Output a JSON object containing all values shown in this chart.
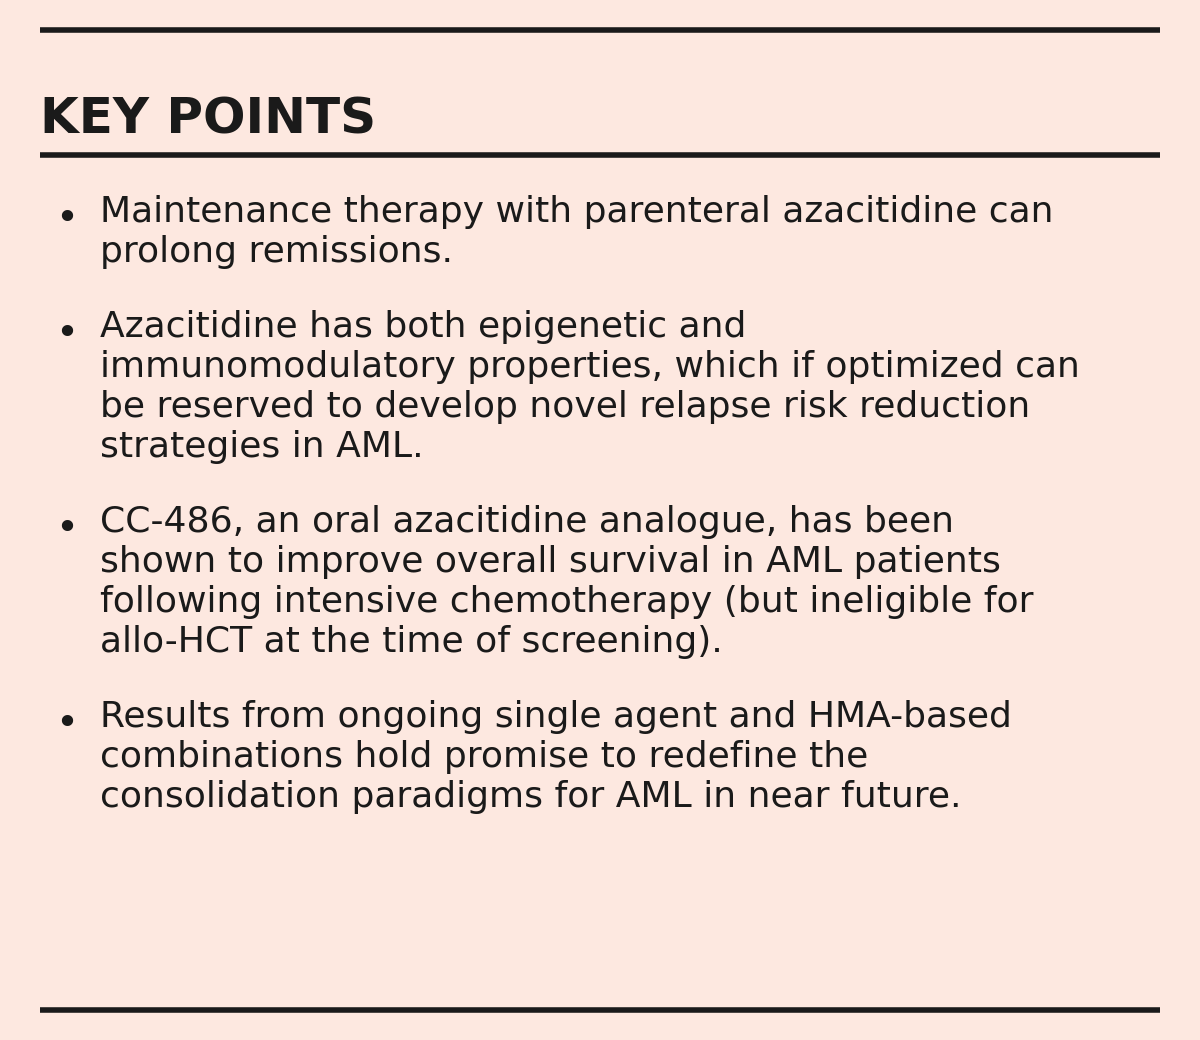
{
  "background_color": "#fde8e0",
  "title": "KEY POINTS",
  "title_fontsize": 36,
  "title_color": "#1a1a1a",
  "text_color": "#1a1a1a",
  "line_color": "#1a1a1a",
  "bullet_points": [
    "Maintenance therapy with parenteral azacitidine can\nprolong remissions.",
    "Azacitidine has both epigenetic and\nimmunomodulatory properties, which if optimized can\nbe reserved to develop novel relapse risk reduction\nstrategies in AML.",
    "CC-486, an oral azacitidine analogue, has been\nshown to improve overall survival in AML patients\nfollowing intensive chemotherapy (but ineligible for\nallo-HCT at the time of screening).",
    "Results from ongoing single agent and HMA-based\ncombinations hold promise to redefine the\nconsolidation paradigms for AML in near future."
  ],
  "body_fontsize": 26,
  "figsize": [
    12.0,
    10.4
  ],
  "dpi": 100
}
